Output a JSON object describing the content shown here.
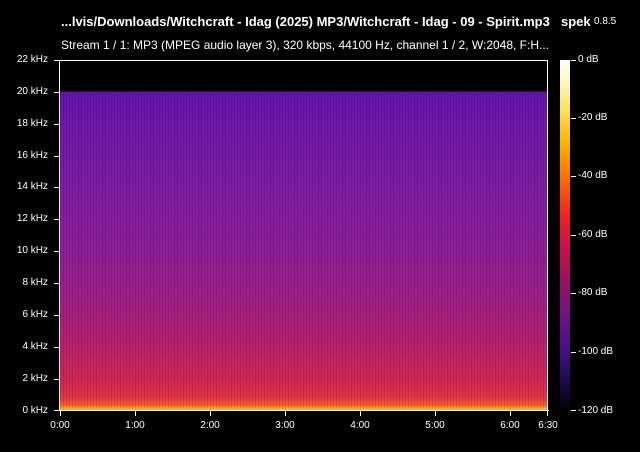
{
  "window": {
    "file_path": "...lvis/Downloads/Witchcraft - Idag (2025) MP3/Witchcraft - Idag - 09 - Spirit.mp3",
    "app_name": "spek",
    "app_version": "0.8.5"
  },
  "stream_info": "Stream 1 / 1: MP3 (MPEG audio layer 3), 320 kbps, 44100 Hz, channel 1 / 2, W:2048, F:H...",
  "frequency_axis": [
    "22 kHz",
    "20 kHz",
    "18 kHz",
    "16 kHz",
    "14 kHz",
    "12 kHz",
    "10 kHz",
    "8 kHz",
    "6 kHz",
    "4 kHz",
    "2 kHz",
    "0 kHz"
  ],
  "time_axis": [
    "0:00",
    "1:00",
    "2:00",
    "3:00",
    "4:00",
    "5:00",
    "6:00",
    "6:30"
  ],
  "colorbar_axis": [
    "0 dB",
    "-20 dB",
    "-40 dB",
    "-60 dB",
    "-80 dB",
    "-100 dB",
    "-120 dB"
  ],
  "colors": {
    "background": "#000000",
    "spectrum_low": "#5b10a8",
    "spectrum_high": "#ffdc60"
  }
}
